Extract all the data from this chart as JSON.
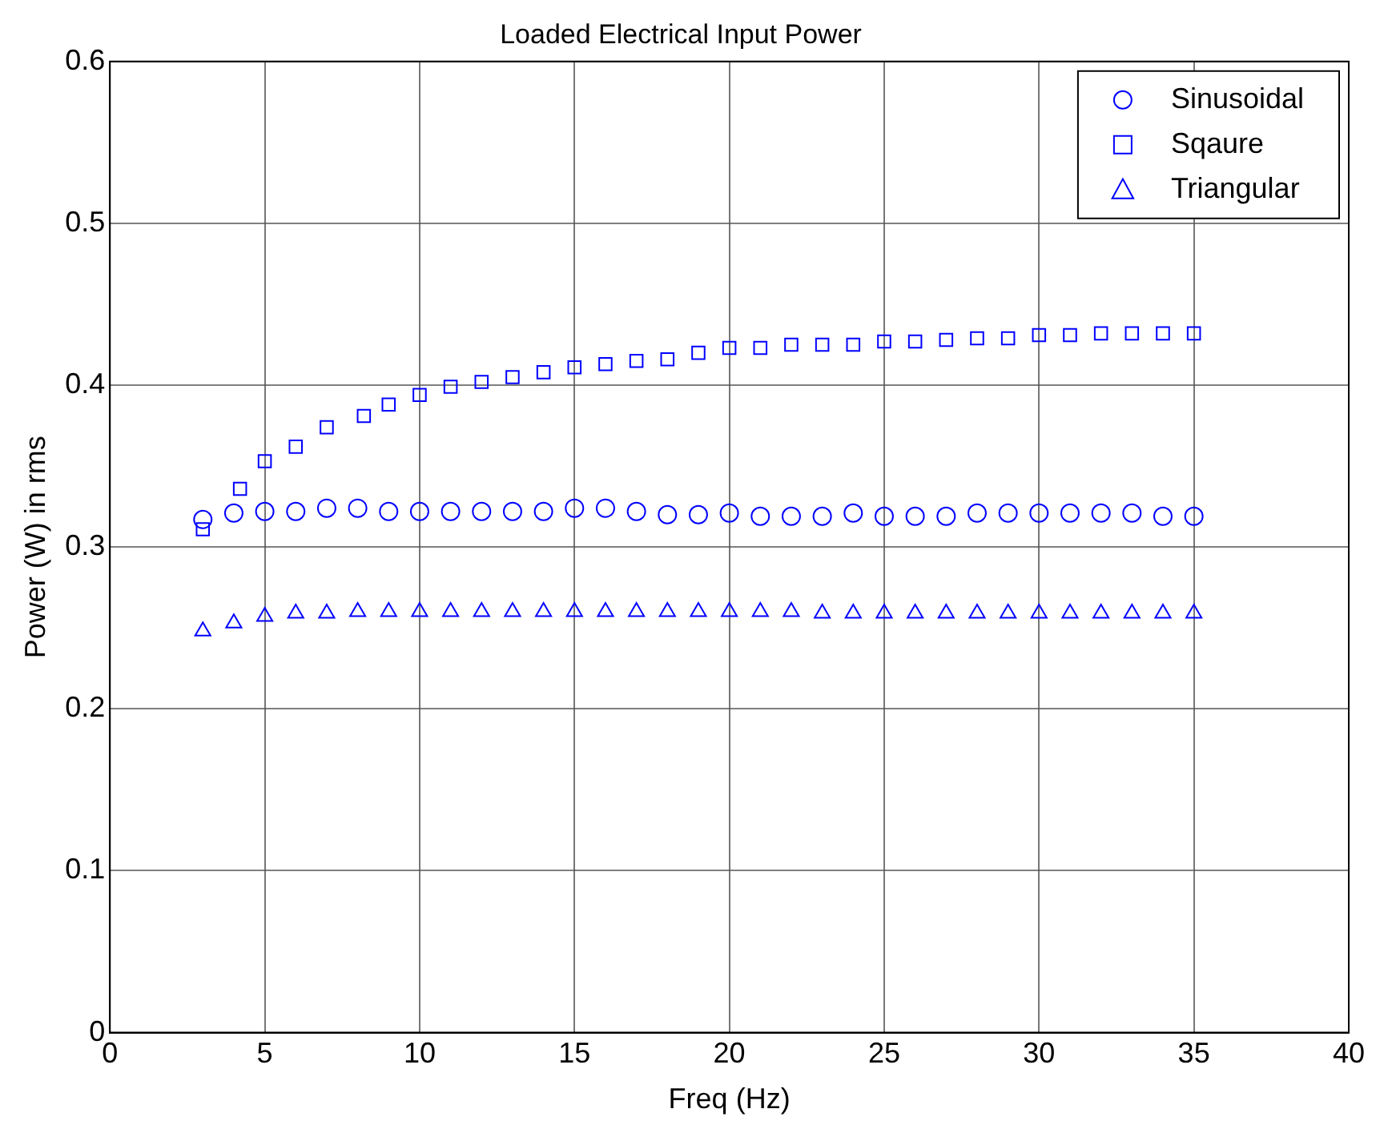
{
  "chart_data": {
    "type": "scatter",
    "title": "Loaded Electrical Input Power",
    "xlabel": "Freq (Hz)",
    "ylabel": "Power (W) in rms",
    "xlim": [
      0,
      40
    ],
    "xticks": [
      0,
      5,
      10,
      15,
      20,
      25,
      30,
      35,
      40
    ],
    "ylim": [
      0,
      0.6
    ],
    "yticks": [
      0,
      0.1,
      0.2,
      0.3,
      0.4,
      0.5,
      0.6
    ],
    "grid": true,
    "legend": "top right",
    "series": [
      {
        "name": "Sinusoidal",
        "color": "#0000ff",
        "marker": "circle",
        "x": [
          3,
          4,
          5,
          6,
          7,
          8,
          9,
          10,
          11,
          12,
          13,
          14,
          15,
          16,
          17,
          18,
          19,
          20,
          21,
          22,
          23,
          24,
          25,
          26,
          27,
          28,
          29,
          30,
          31,
          32,
          33,
          34,
          35
        ],
        "values": [
          0.317,
          0.321,
          0.322,
          0.322,
          0.324,
          0.324,
          0.322,
          0.322,
          0.322,
          0.322,
          0.322,
          0.322,
          0.324,
          0.324,
          0.322,
          0.32,
          0.32,
          0.321,
          0.319,
          0.319,
          0.319,
          0.321,
          0.319,
          0.319,
          0.319,
          0.321,
          0.321,
          0.321,
          0.321,
          0.321,
          0.321,
          0.319,
          0.319
        ]
      },
      {
        "name": "Sqaure",
        "color": "#0000ff",
        "marker": "square",
        "x": [
          3,
          4.2,
          5,
          6,
          7,
          8.2,
          9,
          10,
          11,
          12,
          13,
          14,
          15,
          16,
          17,
          18,
          19,
          20,
          21,
          22,
          23,
          24,
          25,
          26,
          27,
          28,
          29,
          30,
          31,
          32,
          33,
          34,
          35
        ],
        "values": [
          0.311,
          0.336,
          0.353,
          0.362,
          0.374,
          0.381,
          0.388,
          0.394,
          0.399,
          0.402,
          0.405,
          0.408,
          0.411,
          0.413,
          0.415,
          0.416,
          0.42,
          0.423,
          0.423,
          0.425,
          0.425,
          0.425,
          0.427,
          0.427,
          0.428,
          0.429,
          0.429,
          0.431,
          0.431,
          0.432,
          0.432,
          0.432,
          0.432
        ]
      },
      {
        "name": "Triangular",
        "color": "#0000ff",
        "marker": "triangle",
        "x": [
          3,
          4,
          5,
          6,
          7,
          8,
          9,
          10,
          11,
          12,
          13,
          14,
          15,
          16,
          17,
          18,
          19,
          20,
          21,
          22,
          23,
          24,
          25,
          26,
          27,
          28,
          29,
          30,
          31,
          32,
          33,
          34,
          35
        ],
        "values": [
          0.248,
          0.253,
          0.257,
          0.259,
          0.259,
          0.26,
          0.26,
          0.26,
          0.26,
          0.26,
          0.26,
          0.26,
          0.26,
          0.26,
          0.26,
          0.26,
          0.26,
          0.26,
          0.26,
          0.26,
          0.259,
          0.259,
          0.259,
          0.259,
          0.259,
          0.259,
          0.259,
          0.259,
          0.259,
          0.259,
          0.259,
          0.259,
          0.259
        ]
      }
    ]
  }
}
